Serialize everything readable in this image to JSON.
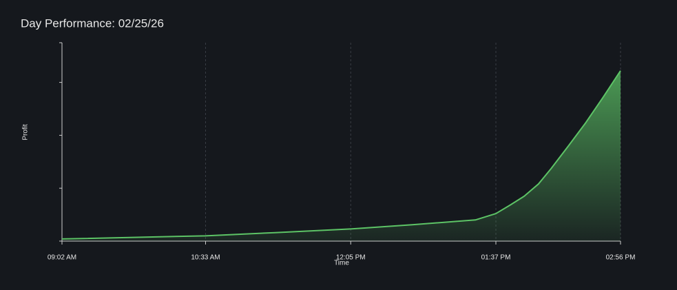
{
  "chart_data": {
    "type": "area",
    "title": "Day Performance: 02/25/26",
    "x_label": "Time",
    "y_label": "Profit",
    "x": [
      542,
      633,
      677,
      725,
      764,
      804,
      817,
      826,
      835,
      844,
      852,
      863,
      874,
      885,
      896
    ],
    "values": [
      0.04,
      0.1,
      0.16,
      0.23,
      0.31,
      0.4,
      0.52,
      0.68,
      0.85,
      1.08,
      1.37,
      1.8,
      2.24,
      2.72,
      3.22
    ],
    "color": "#5dc466",
    "xlim": [
      542,
      896
    ],
    "xticks": [
      {
        "value": 542,
        "label": "09:02 AM"
      },
      {
        "value": 633,
        "label": "10:33 AM"
      },
      {
        "value": 725,
        "label": "12:05 PM"
      },
      {
        "value": 817,
        "label": "01:37 PM"
      },
      {
        "value": 896,
        "label": "02:56 PM"
      }
    ],
    "ylim": [
      0,
      3.75
    ],
    "yticks": [
      0,
      1,
      2,
      3,
      3.75
    ],
    "grid": true
  }
}
